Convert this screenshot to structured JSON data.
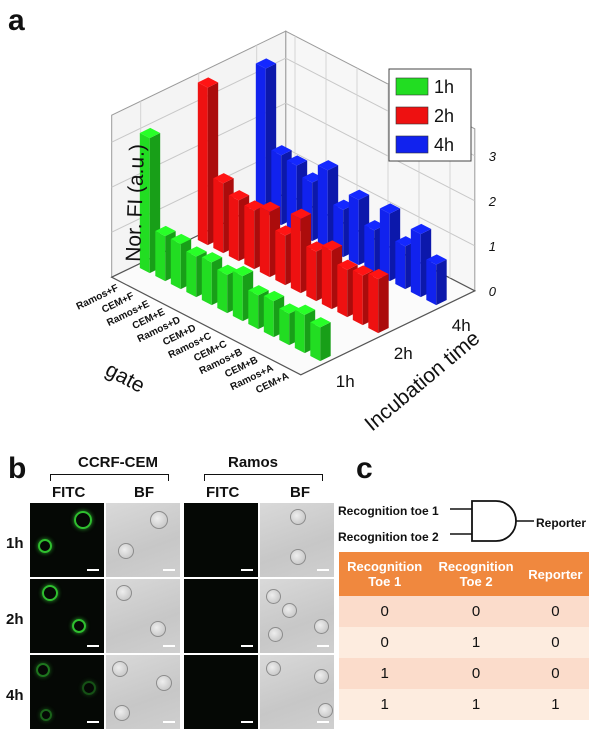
{
  "panels": {
    "a": "a",
    "b": "b",
    "c": "c"
  },
  "chart_data": {
    "type": "bar",
    "chart_style": "3d-bar",
    "zlabel": "Nor. FI (a.u.)",
    "ylabel": "Incubation time",
    "xlabel": "gate",
    "zlim": [
      0,
      3
    ],
    "z_ticks": [
      "0",
      "1",
      "2",
      "3"
    ],
    "categories": [
      "Ramos+F",
      "CEM+F",
      "Ramos+E",
      "CEM+E",
      "Ramos+D",
      "CEM+D",
      "Ramos+C",
      "CEM+C",
      "Ramos+B",
      "CEM+B",
      "Ramos+A",
      "CEM+A"
    ],
    "series": [
      {
        "name": "1h",
        "color": "#22dd22",
        "values": [
          3.0,
          1.0,
          1.0,
          0.9,
          0.95,
          0.85,
          1.0,
          0.75,
          0.8,
          0.7,
          0.85,
          0.75
        ]
      },
      {
        "name": "2h",
        "color": "#ee1111",
        "values": [
          3.5,
          1.55,
          1.35,
          1.3,
          1.45,
          1.1,
          1.65,
          1.1,
          1.3,
          1.05,
          1.1,
          1.2
        ]
      },
      {
        "name": "4h",
        "color": "#1122ee",
        "values": [
          3.3,
          1.55,
          1.5,
          1.3,
          1.75,
          1.05,
          1.45,
          0.95,
          1.5,
          0.95,
          1.4,
          0.9
        ]
      }
    ],
    "legend_position": "top-right",
    "grid": true
  },
  "micrographs": {
    "group_labels": [
      "CCRF-CEM",
      "Ramos"
    ],
    "channel_labels": [
      "FITC",
      "BF",
      "FITC",
      "BF"
    ],
    "row_labels": [
      "1h",
      "2h",
      "4h"
    ]
  },
  "logic": {
    "input1": "Recognition toe 1",
    "input2": "Recognition toe 2",
    "output": "Reporter",
    "table": {
      "headers": [
        [
          "Recognition",
          "Toe 1"
        ],
        [
          "Recognition",
          "Toe 2"
        ],
        [
          "Reporter"
        ]
      ],
      "rows": [
        [
          "0",
          "0",
          "0"
        ],
        [
          "0",
          "1",
          "0"
        ],
        [
          "1",
          "0",
          "0"
        ],
        [
          "1",
          "1",
          "1"
        ]
      ]
    }
  }
}
